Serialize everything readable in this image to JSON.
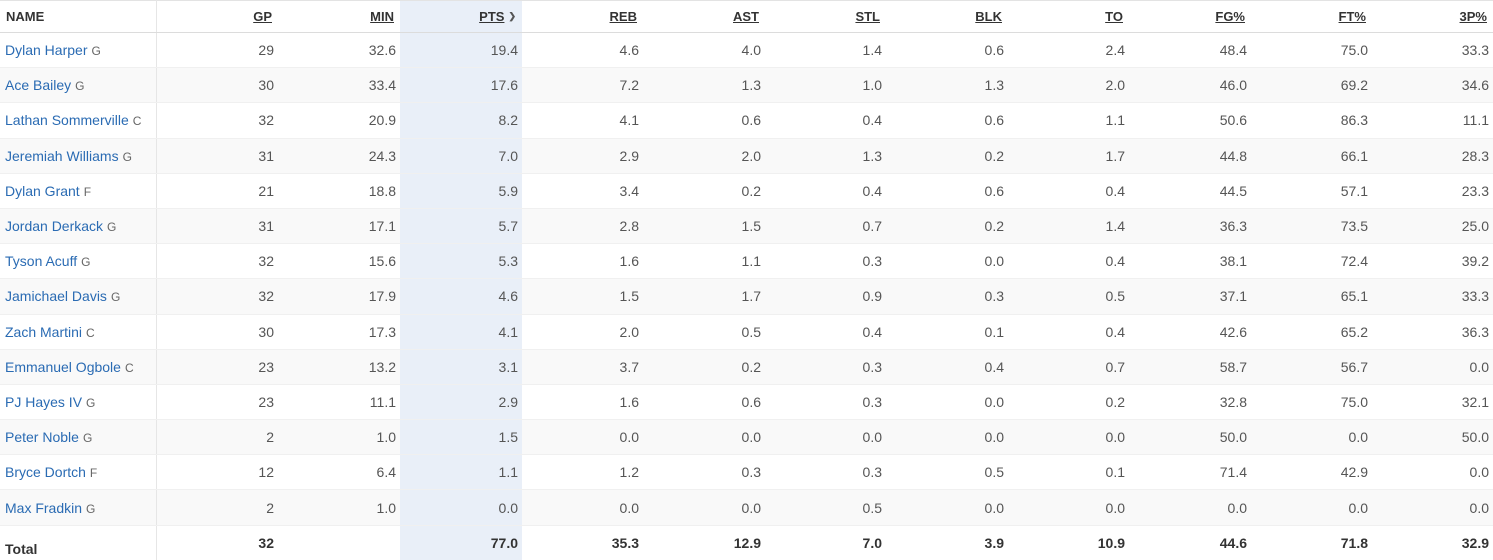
{
  "columns": [
    {
      "key": "name",
      "label": "NAME"
    },
    {
      "key": "gp",
      "label": "GP"
    },
    {
      "key": "min",
      "label": "MIN"
    },
    {
      "key": "pts",
      "label": "PTS"
    },
    {
      "key": "reb",
      "label": "REB"
    },
    {
      "key": "ast",
      "label": "AST"
    },
    {
      "key": "stl",
      "label": "STL"
    },
    {
      "key": "blk",
      "label": "BLK"
    },
    {
      "key": "to",
      "label": "TO"
    },
    {
      "key": "fg_pct",
      "label": "FG%"
    },
    {
      "key": "ft_pct",
      "label": "FT%"
    },
    {
      "key": "three_pct",
      "label": "3P%"
    }
  ],
  "sorted_column": "pts",
  "sort_icon": "chevron-down-icon",
  "colors": {
    "link": "#2a6bb3",
    "sorted_column_bg": "#e9eff8"
  },
  "players": [
    {
      "name": "Dylan Harper",
      "pos": "G",
      "gp": "29",
      "min": "32.6",
      "pts": "19.4",
      "reb": "4.6",
      "ast": "4.0",
      "stl": "1.4",
      "blk": "0.6",
      "to": "2.4",
      "fg_pct": "48.4",
      "ft_pct": "75.0",
      "three_pct": "33.3"
    },
    {
      "name": "Ace Bailey",
      "pos": "G",
      "gp": "30",
      "min": "33.4",
      "pts": "17.6",
      "reb": "7.2",
      "ast": "1.3",
      "stl": "1.0",
      "blk": "1.3",
      "to": "2.0",
      "fg_pct": "46.0",
      "ft_pct": "69.2",
      "three_pct": "34.6"
    },
    {
      "name": "Lathan Sommerville",
      "pos": "C",
      "gp": "32",
      "min": "20.9",
      "pts": "8.2",
      "reb": "4.1",
      "ast": "0.6",
      "stl": "0.4",
      "blk": "0.6",
      "to": "1.1",
      "fg_pct": "50.6",
      "ft_pct": "86.3",
      "three_pct": "11.1"
    },
    {
      "name": "Jeremiah Williams",
      "pos": "G",
      "gp": "31",
      "min": "24.3",
      "pts": "7.0",
      "reb": "2.9",
      "ast": "2.0",
      "stl": "1.3",
      "blk": "0.2",
      "to": "1.7",
      "fg_pct": "44.8",
      "ft_pct": "66.1",
      "three_pct": "28.3"
    },
    {
      "name": "Dylan Grant",
      "pos": "F",
      "gp": "21",
      "min": "18.8",
      "pts": "5.9",
      "reb": "3.4",
      "ast": "0.2",
      "stl": "0.4",
      "blk": "0.6",
      "to": "0.4",
      "fg_pct": "44.5",
      "ft_pct": "57.1",
      "three_pct": "23.3"
    },
    {
      "name": "Jordan Derkack",
      "pos": "G",
      "gp": "31",
      "min": "17.1",
      "pts": "5.7",
      "reb": "2.8",
      "ast": "1.5",
      "stl": "0.7",
      "blk": "0.2",
      "to": "1.4",
      "fg_pct": "36.3",
      "ft_pct": "73.5",
      "three_pct": "25.0"
    },
    {
      "name": "Tyson Acuff",
      "pos": "G",
      "gp": "32",
      "min": "15.6",
      "pts": "5.3",
      "reb": "1.6",
      "ast": "1.1",
      "stl": "0.3",
      "blk": "0.0",
      "to": "0.4",
      "fg_pct": "38.1",
      "ft_pct": "72.4",
      "three_pct": "39.2"
    },
    {
      "name": "Jamichael Davis",
      "pos": "G",
      "gp": "32",
      "min": "17.9",
      "pts": "4.6",
      "reb": "1.5",
      "ast": "1.7",
      "stl": "0.9",
      "blk": "0.3",
      "to": "0.5",
      "fg_pct": "37.1",
      "ft_pct": "65.1",
      "three_pct": "33.3"
    },
    {
      "name": "Zach Martini",
      "pos": "C",
      "gp": "30",
      "min": "17.3",
      "pts": "4.1",
      "reb": "2.0",
      "ast": "0.5",
      "stl": "0.4",
      "blk": "0.1",
      "to": "0.4",
      "fg_pct": "42.6",
      "ft_pct": "65.2",
      "three_pct": "36.3"
    },
    {
      "name": "Emmanuel Ogbole",
      "pos": "C",
      "gp": "23",
      "min": "13.2",
      "pts": "3.1",
      "reb": "3.7",
      "ast": "0.2",
      "stl": "0.3",
      "blk": "0.4",
      "to": "0.7",
      "fg_pct": "58.7",
      "ft_pct": "56.7",
      "three_pct": "0.0"
    },
    {
      "name": "PJ Hayes IV",
      "pos": "G",
      "gp": "23",
      "min": "11.1",
      "pts": "2.9",
      "reb": "1.6",
      "ast": "0.6",
      "stl": "0.3",
      "blk": "0.0",
      "to": "0.2",
      "fg_pct": "32.8",
      "ft_pct": "75.0",
      "three_pct": "32.1"
    },
    {
      "name": "Peter Noble",
      "pos": "G",
      "gp": "2",
      "min": "1.0",
      "pts": "1.5",
      "reb": "0.0",
      "ast": "0.0",
      "stl": "0.0",
      "blk": "0.0",
      "to": "0.0",
      "fg_pct": "50.0",
      "ft_pct": "0.0",
      "three_pct": "50.0"
    },
    {
      "name": "Bryce Dortch",
      "pos": "F",
      "gp": "12",
      "min": "6.4",
      "pts": "1.1",
      "reb": "1.2",
      "ast": "0.3",
      "stl": "0.3",
      "blk": "0.5",
      "to": "0.1",
      "fg_pct": "71.4",
      "ft_pct": "42.9",
      "three_pct": "0.0"
    },
    {
      "name": "Max Fradkin",
      "pos": "G",
      "gp": "2",
      "min": "1.0",
      "pts": "0.0",
      "reb": "0.0",
      "ast": "0.0",
      "stl": "0.5",
      "blk": "0.0",
      "to": "0.0",
      "fg_pct": "0.0",
      "ft_pct": "0.0",
      "three_pct": "0.0"
    }
  ],
  "totals": {
    "label": "Total",
    "gp": "32",
    "min": "",
    "pts": "77.0",
    "reb": "35.3",
    "ast": "12.9",
    "stl": "7.0",
    "blk": "3.9",
    "to": "10.9",
    "fg_pct": "44.6",
    "ft_pct": "71.8",
    "three_pct": "32.9"
  }
}
